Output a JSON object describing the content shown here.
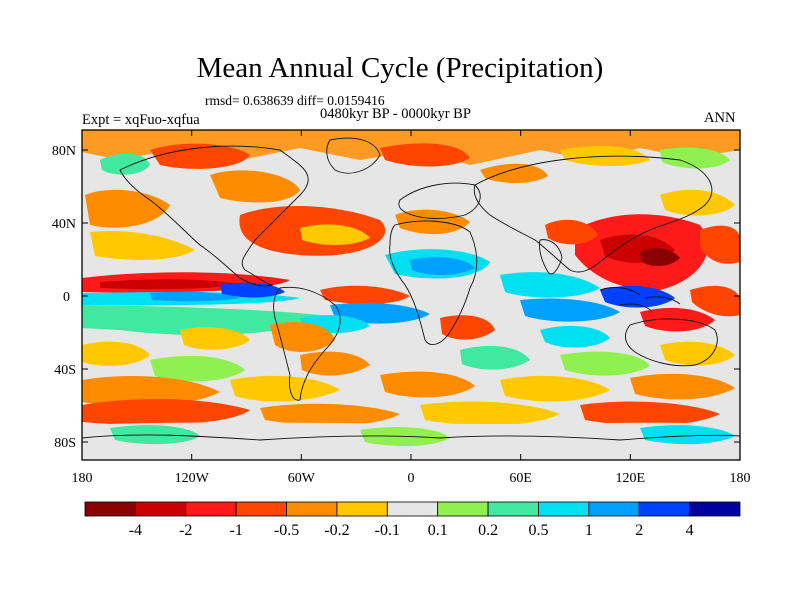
{
  "title": "Mean Annual Cycle (Precipitation)",
  "stats": "rmsd= 0.638639 diff= 0.0159416",
  "period": "0480kyr BP - 0000kyr BP",
  "experiment": "Expt = xqFuo-xqfua",
  "season": "ANN",
  "axes": {
    "lat_ticks": [
      "80N",
      "40N",
      "0",
      "40S",
      "80S"
    ],
    "lon_ticks": [
      "180",
      "120W",
      "60W",
      "0",
      "60E",
      "120E",
      "180"
    ]
  },
  "colorbar": {
    "labels": [
      "-4",
      "-2",
      "-1",
      "-0.5",
      "-0.2",
      "-0.1",
      "0.1",
      "0.2",
      "0.5",
      "1",
      "2",
      "4"
    ],
    "colors": [
      "#8b0000",
      "#cc0000",
      "#ff1a1a",
      "#ff4500",
      "#ff8c00",
      "#ffc800",
      "#e6e6e6",
      "#90f050",
      "#40e8a0",
      "#00e0f0",
      "#00a0ff",
      "#0040ff",
      "#0000a0"
    ]
  },
  "palette": {
    "land_bg": "#e6e6e6",
    "coast": "#111111"
  }
}
